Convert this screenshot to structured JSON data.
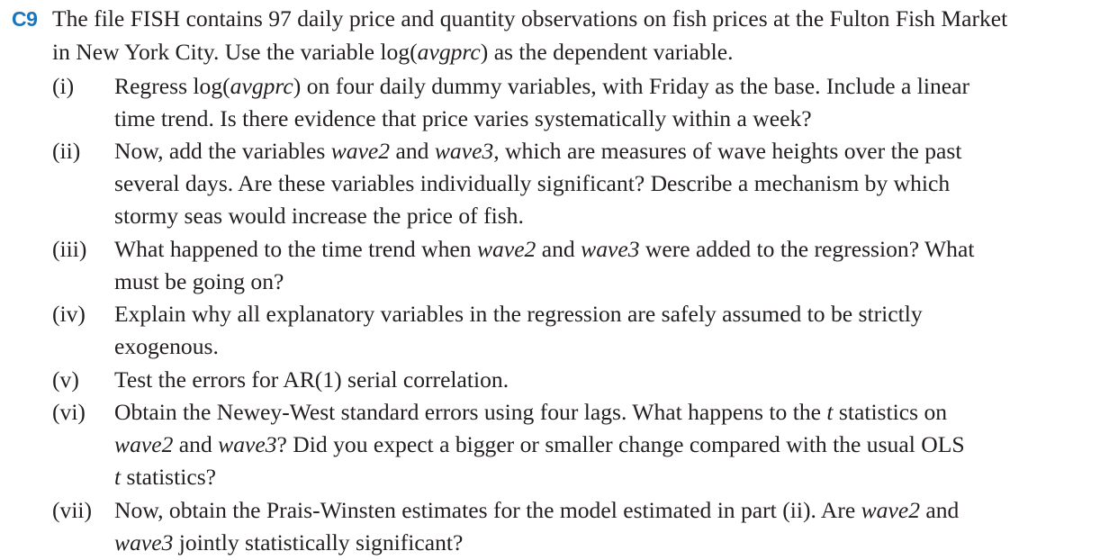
{
  "problem": {
    "label": "C9",
    "intro_line1": "The file FISH contains 97 daily price and quantity observations on fish prices at the Fulton Fish Market",
    "intro_line2_a": "in New York City. Use the variable log(",
    "intro_line2_var": "avgprc",
    "intro_line2_b": ") as the dependent variable."
  },
  "parts": {
    "i": {
      "num": "(i)",
      "l1_a": "Regress log(",
      "l1_var": "avgprc",
      "l1_b": ") on four daily dummy variables, with Friday as the base. Include a linear",
      "l2": "time trend. Is there evidence that price varies systematically within a week?"
    },
    "ii": {
      "num": "(ii)",
      "l1_a": "Now, add the variables ",
      "l1_v1": "wave2",
      "l1_b": " and ",
      "l1_v2": "wave3",
      "l1_c": ", which are measures of wave heights over the past",
      "l2": "several days. Are these variables individually significant? Describe a mechanism by which",
      "l3": "stormy seas would increase the price of fish."
    },
    "iii": {
      "num": "(iii)",
      "l1_a": "What happened to the time trend when ",
      "l1_v1": "wave2",
      "l1_b": " and ",
      "l1_v2": "wave3",
      "l1_c": " were added to the regression? What",
      "l2": "must be going on?"
    },
    "iv": {
      "num": "(iv)",
      "l1": "Explain why all explanatory variables in the regression are safely assumed to be strictly",
      "l2": "exogenous."
    },
    "v": {
      "num": "(v)",
      "l1": "Test the errors for AR(1) serial correlation."
    },
    "vi": {
      "num": "(vi)",
      "l1_a": "Obtain the Newey-West standard errors using four lags. What happens to the ",
      "l1_t": "t",
      "l1_b": " statistics on",
      "l2_v1": "wave2",
      "l2_a": " and ",
      "l2_v2": "wave3",
      "l2_b": "? Did you expect a bigger or smaller change compared with the usual OLS",
      "l3_t": "t",
      "l3_a": " statistics?"
    },
    "vii": {
      "num": "(vii)",
      "l1_a": "Now, obtain the Prais-Winsten estimates for the model estimated in part (ii). Are ",
      "l1_v1": "wave2",
      "l1_b": " and",
      "l2_v2": "wave3",
      "l2_a": " jointly statistically significant?"
    }
  }
}
